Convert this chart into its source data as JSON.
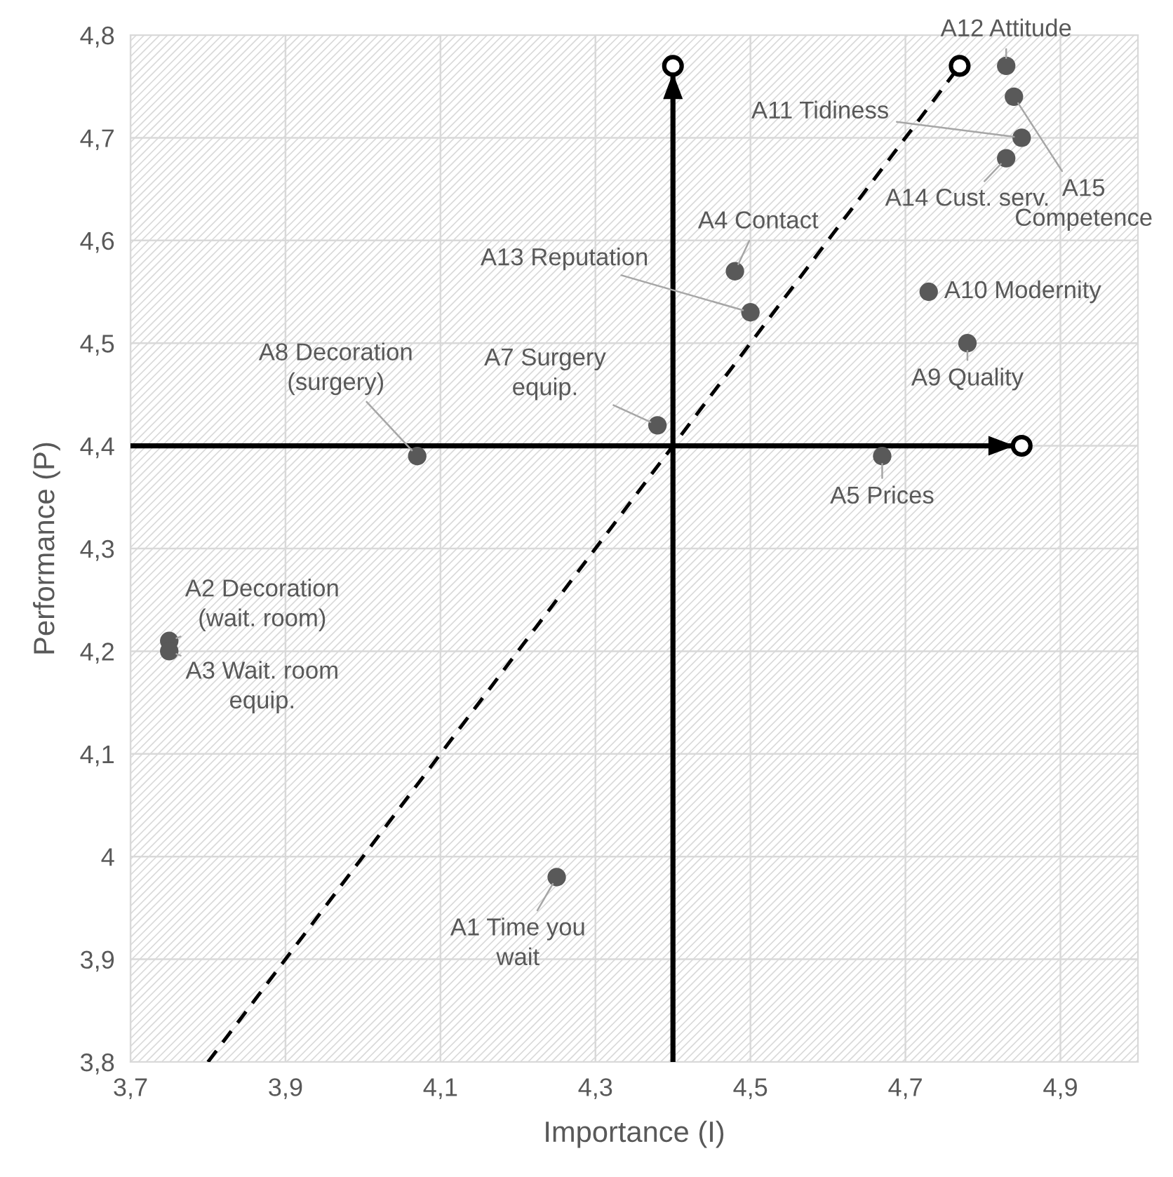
{
  "chart_data": {
    "type": "scatter",
    "xlabel": "Importance (I)",
    "ylabel": "Performance (P)",
    "xlim": [
      3.7,
      5.0
    ],
    "xticks": [
      {
        "value": 3.7,
        "label": "3,7"
      },
      {
        "value": 3.9,
        "label": "3,9"
      },
      {
        "value": 4.1,
        "label": "4,1"
      },
      {
        "value": 4.3,
        "label": "4,3"
      },
      {
        "value": 4.5,
        "label": "4,5"
      },
      {
        "value": 4.7,
        "label": "4,7"
      },
      {
        "value": 4.9,
        "label": "4,9"
      }
    ],
    "ylim": [
      3.8,
      4.8
    ],
    "yticks": [
      {
        "value": 3.8,
        "label": "3,8"
      },
      {
        "value": 3.9,
        "label": "3,9"
      },
      {
        "value": 4.0,
        "label": "4"
      },
      {
        "value": 4.1,
        "label": "4,1"
      },
      {
        "value": 4.2,
        "label": "4,2"
      },
      {
        "value": 4.3,
        "label": "4,3"
      },
      {
        "value": 4.4,
        "label": "4,4"
      },
      {
        "value": 4.5,
        "label": "4,5"
      },
      {
        "value": 4.6,
        "label": "4,6"
      },
      {
        "value": 4.7,
        "label": "4,7"
      },
      {
        "value": 4.8,
        "label": "4,8"
      }
    ],
    "grid": true,
    "legend": false,
    "series": [
      {
        "color": "#595959",
        "marker": "circle",
        "x": [
          4.25,
          3.75,
          3.75,
          4.48,
          4.67,
          4.38,
          4.07,
          4.78,
          4.73,
          4.85,
          4.83,
          4.5,
          4.83,
          4.84
        ],
        "values": [
          3.98,
          4.21,
          4.2,
          4.57,
          4.39,
          4.42,
          4.39,
          4.5,
          4.55,
          4.7,
          4.77,
          4.53,
          4.68,
          4.74
        ]
      },
      {
        "type": "line",
        "color": "#000000",
        "marker": "circle",
        "line_style": "solid",
        "x": [
          3.7,
          4.85
        ],
        "values": [
          4.4,
          4.4
        ]
      },
      {
        "type": "line",
        "color": "#000000",
        "marker": "circle",
        "line_style": "solid",
        "x": [
          4.4,
          4.4
        ],
        "values": [
          3.8,
          4.77
        ]
      },
      {
        "type": "line",
        "color": "#000000",
        "marker": "circle",
        "line_style": "dashed",
        "x": [
          3.8,
          4.77
        ],
        "values": [
          3.8,
          4.77
        ]
      }
    ],
    "annotations": [
      {
        "text": "A1 Time you\nwait",
        "x": 4.25,
        "y": 3.98
      },
      {
        "text": "A2 Decoration\n(wait. room)",
        "x": 3.75,
        "y": 4.21
      },
      {
        "text": "A3 Wait. room\nequip.",
        "x": 3.75,
        "y": 4.2
      },
      {
        "text": "A4 Contact",
        "x": 4.48,
        "y": 4.57
      },
      {
        "text": "A5 Prices",
        "x": 4.67,
        "y": 4.39
      },
      {
        "text": "A7 Surgery\nequip.",
        "x": 4.38,
        "y": 4.42
      },
      {
        "text": "A8 Decoration\n(surgery)",
        "x": 4.07,
        "y": 4.39
      },
      {
        "text": "A9 Quality",
        "x": 4.78,
        "y": 4.5
      },
      {
        "text": "A10 Modernity",
        "x": 4.73,
        "y": 4.55
      },
      {
        "text": "A11 Tidiness",
        "x": 4.85,
        "y": 4.7
      },
      {
        "text": "A12 Attitude",
        "x": 4.83,
        "y": 4.77
      },
      {
        "text": "A13 Reputation",
        "x": 4.5,
        "y": 4.53
      },
      {
        "text": "A14 Cust. serv.",
        "x": 4.83,
        "y": 4.68
      },
      {
        "text": "A15\nCompetence",
        "x": 4.84,
        "y": 4.74
      }
    ]
  }
}
